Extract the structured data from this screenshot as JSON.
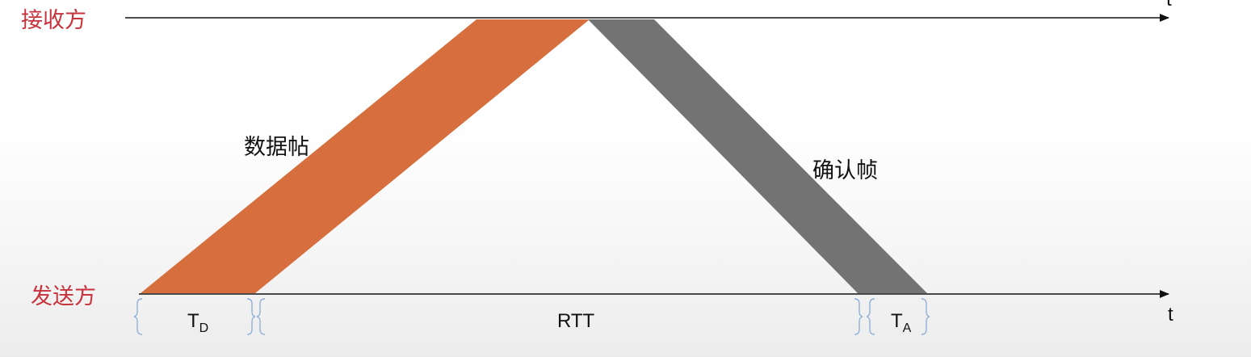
{
  "receiver": {
    "label": "接收方",
    "axis_label": "t"
  },
  "sender": {
    "label": "发送方",
    "axis_label": "t"
  },
  "data_frame": {
    "label": "数据帖",
    "color": "#d66f3d"
  },
  "ack_frame": {
    "label": "确认帧",
    "color": "#737373"
  },
  "intervals": {
    "td": {
      "main": "T",
      "sub": "D"
    },
    "rtt": {
      "label": "RTT"
    },
    "ta": {
      "main": "T",
      "sub": "A"
    }
  },
  "brace_color": "#8fb0d6"
}
